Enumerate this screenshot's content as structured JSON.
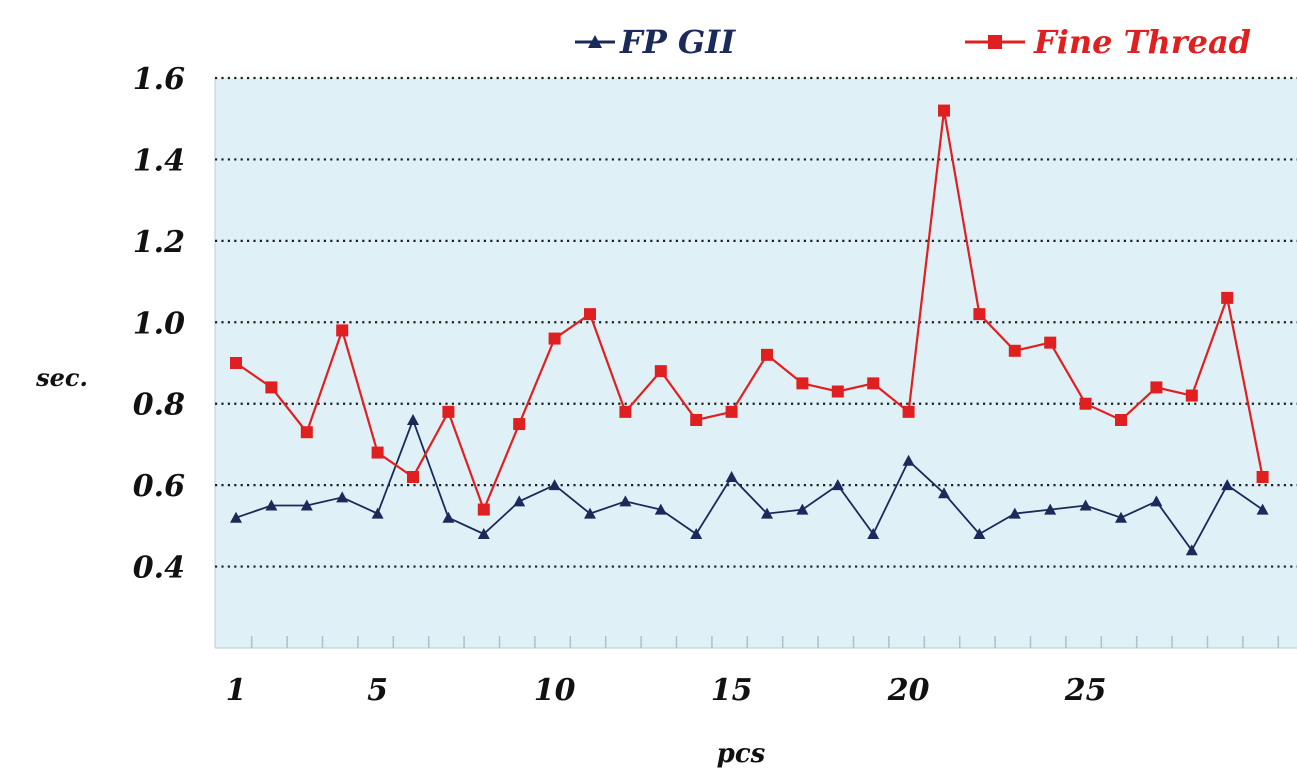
{
  "chart_data": {
    "type": "line",
    "xlabel": "pcs",
    "ylabel": "sec.",
    "x": [
      1,
      2,
      3,
      4,
      5,
      6,
      7,
      8,
      9,
      10,
      11,
      12,
      13,
      14,
      15,
      16,
      17,
      18,
      19,
      20,
      21,
      22,
      23,
      24,
      25,
      26,
      27,
      28,
      29,
      30
    ],
    "x_tick_labels": [
      "1",
      "5",
      "10",
      "15",
      "20",
      "25"
    ],
    "x_tick_values": [
      1,
      5,
      10,
      15,
      20,
      25
    ],
    "y_tick_labels": [
      "0.4",
      "0.6",
      "0.8",
      "1.0",
      "1.2",
      "1.4",
      "1.6"
    ],
    "y_tick_values": [
      0.4,
      0.6,
      0.8,
      1.0,
      1.2,
      1.4,
      1.6
    ],
    "ylim": [
      0.2,
      1.6
    ],
    "xlim": [
      1,
      30
    ],
    "grid": "horizontal dotted",
    "legend_position": "top",
    "series": [
      {
        "name": "FP GII",
        "color": "#1b2a5a",
        "marker": "triangle",
        "values": [
          0.52,
          0.55,
          0.55,
          0.57,
          0.53,
          0.76,
          0.52,
          0.48,
          0.56,
          0.6,
          0.53,
          0.56,
          0.54,
          0.48,
          0.62,
          0.53,
          0.54,
          0.6,
          0.48,
          0.66,
          0.58,
          0.48,
          0.53,
          0.54,
          0.55,
          0.52,
          0.56,
          0.44,
          0.6,
          0.54
        ]
      },
      {
        "name": "Fine Thread",
        "color": "#e02020",
        "marker": "square",
        "values": [
          0.9,
          0.84,
          0.73,
          0.98,
          0.68,
          0.62,
          0.78,
          0.54,
          0.75,
          0.96,
          1.02,
          0.78,
          0.88,
          0.76,
          0.78,
          0.92,
          0.85,
          0.83,
          0.85,
          0.78,
          1.52,
          1.02,
          0.93,
          0.95,
          0.8,
          0.76,
          0.84,
          0.82,
          1.06,
          0.62
        ]
      }
    ]
  },
  "colors": {
    "plot_background": "#dff0f6",
    "grid": "#222222",
    "axis_text": "#111111"
  }
}
